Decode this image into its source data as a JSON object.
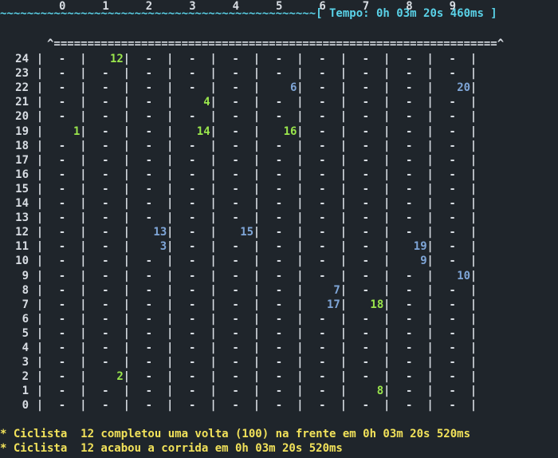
{
  "terminal": {
    "top_line": "~~~~~~~~~~~~~~~~~~~~~~~~~~~~~~~~~~~~~~~~~~~~~~~[ Tempo: 0h 03m 20s 460ms ]",
    "column_labels": [
      "0",
      "1",
      "2",
      "3",
      "4",
      "5",
      "6",
      "7",
      "8",
      "9"
    ],
    "border_line": "       ^==================================================================^",
    "row_labels": [
      "24",
      "23",
      "22",
      "21",
      "20",
      "19",
      "18",
      "17",
      "16",
      "15",
      "14",
      "13",
      "12",
      "11",
      "10",
      "9",
      "8",
      "7",
      "6",
      "5",
      "4",
      "3",
      "2",
      "1",
      "0"
    ],
    "empty_cell": "-",
    "separator": "|",
    "colors": {
      "text": "#d8dde3",
      "header": "#5ad2e8",
      "blue_rider": "#7fa6d8",
      "green_rider": "#9ae64c",
      "message": "#f2e25a",
      "background": "#1f252b"
    },
    "riders": [
      {
        "row": "24",
        "col": 1,
        "label": "12",
        "color": "green"
      },
      {
        "row": "22",
        "col": 5,
        "label": "6",
        "color": "blue"
      },
      {
        "row": "22",
        "col": 9,
        "label": "20",
        "color": "blue"
      },
      {
        "row": "21",
        "col": 3,
        "label": "4",
        "color": "green"
      },
      {
        "row": "19",
        "col": 0,
        "label": "1",
        "color": "green"
      },
      {
        "row": "19",
        "col": 3,
        "label": "14",
        "color": "green"
      },
      {
        "row": "19",
        "col": 5,
        "label": "16",
        "color": "green"
      },
      {
        "row": "12",
        "col": 2,
        "label": "13",
        "color": "blue"
      },
      {
        "row": "12",
        "col": 4,
        "label": "15",
        "color": "blue"
      },
      {
        "row": "11",
        "col": 2,
        "label": "3",
        "color": "blue"
      },
      {
        "row": "11",
        "col": 8,
        "label": "19",
        "color": "blue"
      },
      {
        "row": "10",
        "col": 8,
        "label": "9",
        "color": "blue"
      },
      {
        "row": "9",
        "col": 9,
        "label": "10",
        "color": "blue"
      },
      {
        "row": "8",
        "col": 6,
        "label": "7",
        "color": "blue"
      },
      {
        "row": "7",
        "col": 6,
        "label": "17",
        "color": "blue"
      },
      {
        "row": "7",
        "col": 7,
        "label": "18",
        "color": "green"
      },
      {
        "row": "2",
        "col": 1,
        "label": "2",
        "color": "green"
      },
      {
        "row": "1",
        "col": 7,
        "label": "8",
        "color": "green"
      }
    ],
    "messages": [
      "* Ciclista  12 completou uma volta (100) na frente em 0h 03m 20s 520ms",
      "* Ciclista  12 acabou a corrida em 0h 03m 20s 520ms"
    ]
  }
}
